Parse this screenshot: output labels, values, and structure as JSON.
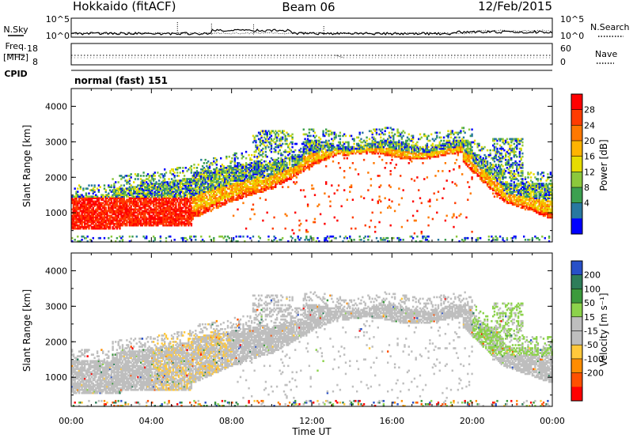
{
  "header": {
    "radar": "Hokkaido (fitACF)",
    "beam": "Beam 06",
    "date": "12/Feb/2015"
  },
  "noise_panel": {
    "left_label": "N.Sky",
    "right_label": "N.Search",
    "left_ticks": [
      "10^5",
      "10^0"
    ],
    "right_ticks": [
      "10^5",
      "10^0"
    ]
  },
  "freq_panel": {
    "left_label_line1": "Freq.",
    "left_label_line2": "[MHz]",
    "left_ticks": [
      "18",
      "8"
    ],
    "right_label": "Nave",
    "right_ticks": [
      "60",
      "0"
    ]
  },
  "cpid_panel": {
    "label": "CPID",
    "text": "normal (fast) 151"
  },
  "xaxis": {
    "title": "Time UT",
    "ticks": [
      "00:00",
      "04:00",
      "08:00",
      "12:00",
      "16:00",
      "20:00",
      "00:00"
    ]
  },
  "yaxis": {
    "title": "Slant Range [km]",
    "ticks": [
      "4000",
      "3000",
      "2000",
      "1000"
    ]
  },
  "chart_data": [
    {
      "type": "heatmap",
      "name": "power",
      "colorbar_title": "Power [dB]",
      "x_range_hours": [
        0,
        24
      ],
      "y_range_km": [
        180,
        4500
      ],
      "colorbar": {
        "ticks": [
          "28",
          "24",
          "20",
          "16",
          "12",
          "8",
          "4"
        ],
        "colors": [
          "#ff0000",
          "#ff3c00",
          "#ff7800",
          "#ffb400",
          "#e6dc00",
          "#8cc83c",
          "#3ca050",
          "#2878a0",
          "#0000ff"
        ]
      }
    },
    {
      "type": "heatmap",
      "name": "velocity",
      "colorbar_title": "Velocity [m s⁻¹]",
      "x_range_hours": [
        0,
        24
      ],
      "y_range_km": [
        180,
        4500
      ],
      "colorbar": {
        "ticks": [
          "200",
          "100",
          "50",
          "15",
          "-15",
          "-50",
          "-100",
          "-200"
        ],
        "colors": [
          "#2850c8",
          "#2e7d5a",
          "#3c9a3c",
          "#8cd24b",
          "#bebebe",
          "#bebebe",
          "#ffc83c",
          "#ff8c00",
          "#ff5000",
          "#ff0000"
        ]
      }
    }
  ]
}
